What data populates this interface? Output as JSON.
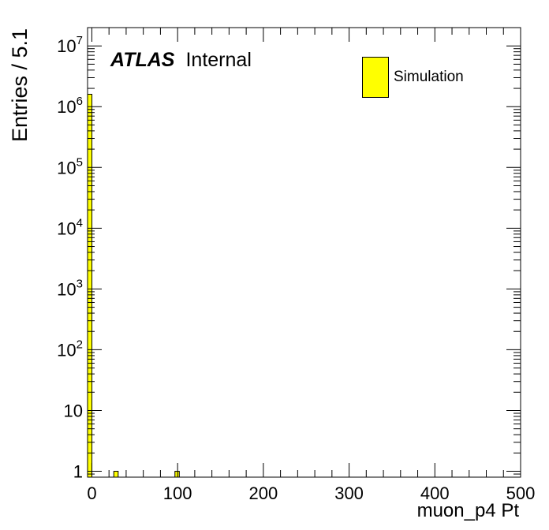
{
  "chart_data": {
    "type": "bar",
    "xlabel": "muon_p4 Pt",
    "ylabel": "Entries / 5.1",
    "xlim": [
      -5,
      500
    ],
    "ylim": [
      0.8,
      20000000
    ],
    "yscale": "log",
    "bin_width": 5.1,
    "x_ticks": [
      {
        "value": 0,
        "label": "0"
      },
      {
        "value": 100,
        "label": "100"
      },
      {
        "value": 200,
        "label": "200"
      },
      {
        "value": 300,
        "label": "300"
      },
      {
        "value": 400,
        "label": "400"
      },
      {
        "value": 500,
        "label": "500"
      }
    ],
    "y_ticks": [
      {
        "value": 1,
        "base": "1",
        "exp": ""
      },
      {
        "value": 10,
        "base": "10",
        "exp": ""
      },
      {
        "value": 100,
        "base": "10",
        "exp": "2"
      },
      {
        "value": 1000,
        "base": "10",
        "exp": "3"
      },
      {
        "value": 10000,
        "base": "10",
        "exp": "4"
      },
      {
        "value": 100000,
        "base": "10",
        "exp": "5"
      },
      {
        "value": 1000000,
        "base": "10",
        "exp": "6"
      },
      {
        "value": 10000000,
        "base": "10",
        "exp": "7"
      }
    ],
    "bins": [
      {
        "x_low": -5,
        "x_high": 0.1,
        "value": 1600000
      },
      {
        "x_low": 25.6,
        "x_high": 30.7,
        "value": 1
      },
      {
        "x_low": 96.9,
        "x_high": 102.0,
        "value": 1
      }
    ],
    "series": [
      {
        "name": "Simulation",
        "color": "#ffff00"
      }
    ],
    "legend_position": "top-right",
    "grid": false
  },
  "annotation": {
    "experiment": "ATLAS",
    "status": "Internal"
  }
}
